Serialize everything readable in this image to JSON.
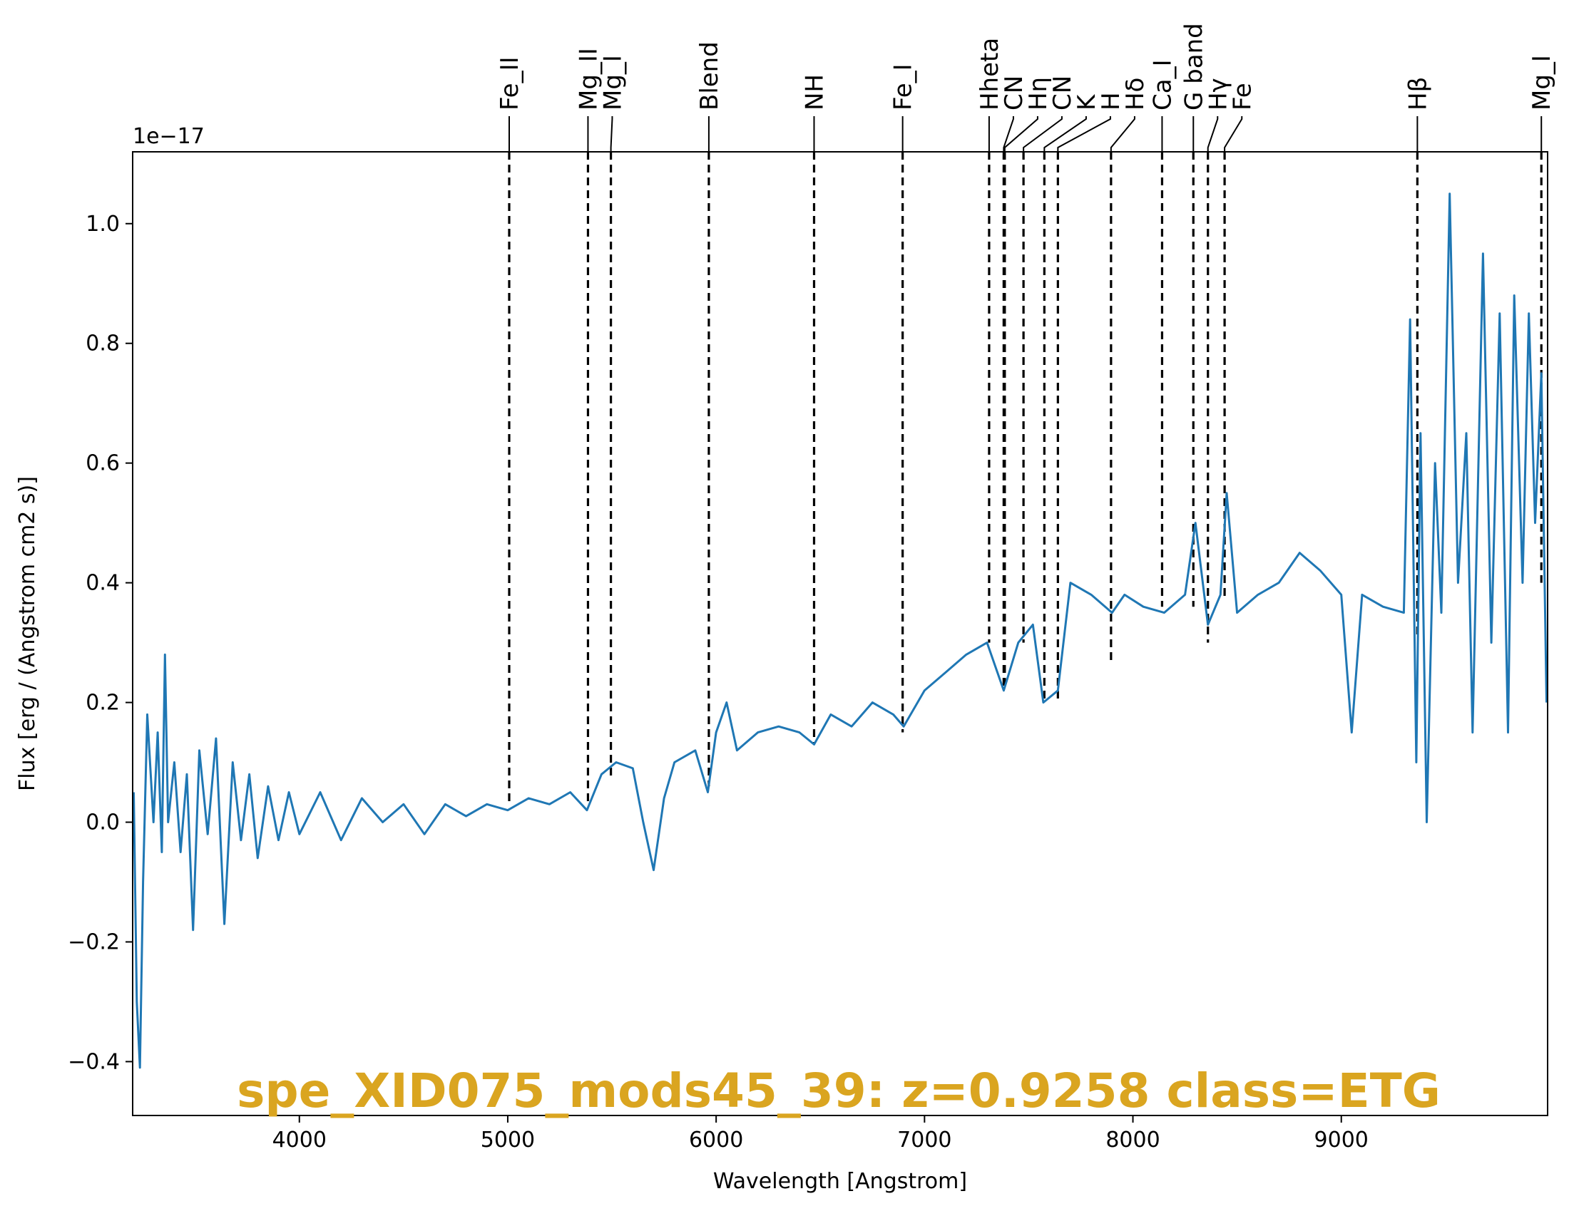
{
  "chart_data": {
    "type": "line",
    "title": "",
    "xlabel": "Wavelength [Angstrom]",
    "ylabel": "Flux [erg / (Angstrom cm2 s)]",
    "y_offset_text": "1e−17",
    "xlim": [
      3200,
      9990
    ],
    "ylim": [
      -0.49,
      1.12
    ],
    "x_ticks": [
      4000,
      5000,
      6000,
      7000,
      8000,
      9000
    ],
    "x_tick_labels": [
      "4000",
      "5000",
      "6000",
      "7000",
      "8000",
      "9000"
    ],
    "y_ticks": [
      -0.4,
      -0.2,
      0.0,
      0.2,
      0.4,
      0.6,
      0.8,
      1.0
    ],
    "y_tick_labels": [
      "−0.4",
      "−0.2",
      "0.0",
      "0.2",
      "0.4",
      "0.6",
      "0.8",
      "1.0"
    ],
    "grid": false,
    "annotation": {
      "text": "spe_XID075_mods45_39: z=0.9258 class=ETG",
      "color": "#DAA520"
    },
    "series": [
      {
        "color": "#1f77b4",
        "points": [
          [
            3205,
            0.05
          ],
          [
            3220,
            -0.3
          ],
          [
            3235,
            -0.41
          ],
          [
            3250,
            -0.1
          ],
          [
            3270,
            0.18
          ],
          [
            3300,
            0.0
          ],
          [
            3320,
            0.15
          ],
          [
            3340,
            -0.05
          ],
          [
            3355,
            0.28
          ],
          [
            3370,
            0.0
          ],
          [
            3400,
            0.1
          ],
          [
            3430,
            -0.05
          ],
          [
            3460,
            0.08
          ],
          [
            3490,
            -0.18
          ],
          [
            3520,
            0.12
          ],
          [
            3560,
            -0.02
          ],
          [
            3600,
            0.14
          ],
          [
            3640,
            -0.17
          ],
          [
            3680,
            0.1
          ],
          [
            3720,
            -0.03
          ],
          [
            3760,
            0.08
          ],
          [
            3800,
            -0.06
          ],
          [
            3850,
            0.06
          ],
          [
            3900,
            -0.03
          ],
          [
            3950,
            0.05
          ],
          [
            4000,
            -0.02
          ],
          [
            4100,
            0.05
          ],
          [
            4200,
            -0.03
          ],
          [
            4300,
            0.04
          ],
          [
            4400,
            0.0
          ],
          [
            4500,
            0.03
          ],
          [
            4600,
            -0.02
          ],
          [
            4700,
            0.03
          ],
          [
            4800,
            0.01
          ],
          [
            4900,
            0.03
          ],
          [
            5000,
            0.02
          ],
          [
            5100,
            0.04
          ],
          [
            5200,
            0.03
          ],
          [
            5300,
            0.05
          ],
          [
            5380,
            0.02
          ],
          [
            5450,
            0.08
          ],
          [
            5520,
            0.1
          ],
          [
            5600,
            0.09
          ],
          [
            5650,
            0.0
          ],
          [
            5700,
            -0.08
          ],
          [
            5750,
            0.04
          ],
          [
            5800,
            0.1
          ],
          [
            5900,
            0.12
          ],
          [
            5960,
            0.05
          ],
          [
            6000,
            0.15
          ],
          [
            6050,
            0.2
          ],
          [
            6100,
            0.12
          ],
          [
            6200,
            0.15
          ],
          [
            6300,
            0.16
          ],
          [
            6400,
            0.15
          ],
          [
            6470,
            0.13
          ],
          [
            6550,
            0.18
          ],
          [
            6650,
            0.16
          ],
          [
            6750,
            0.2
          ],
          [
            6850,
            0.18
          ],
          [
            6900,
            0.16
          ],
          [
            7000,
            0.22
          ],
          [
            7100,
            0.25
          ],
          [
            7200,
            0.28
          ],
          [
            7300,
            0.3
          ],
          [
            7380,
            0.22
          ],
          [
            7450,
            0.3
          ],
          [
            7520,
            0.33
          ],
          [
            7570,
            0.2
          ],
          [
            7640,
            0.22
          ],
          [
            7700,
            0.4
          ],
          [
            7800,
            0.38
          ],
          [
            7900,
            0.35
          ],
          [
            7960,
            0.38
          ],
          [
            8050,
            0.36
          ],
          [
            8150,
            0.35
          ],
          [
            8250,
            0.38
          ],
          [
            8300,
            0.5
          ],
          [
            8360,
            0.33
          ],
          [
            8420,
            0.38
          ],
          [
            8450,
            0.55
          ],
          [
            8500,
            0.35
          ],
          [
            8600,
            0.38
          ],
          [
            8700,
            0.4
          ],
          [
            8800,
            0.45
          ],
          [
            8900,
            0.42
          ],
          [
            9000,
            0.38
          ],
          [
            9050,
            0.15
          ],
          [
            9100,
            0.38
          ],
          [
            9200,
            0.36
          ],
          [
            9300,
            0.35
          ],
          [
            9330,
            0.84
          ],
          [
            9360,
            0.1
          ],
          [
            9380,
            0.65
          ],
          [
            9410,
            0.0
          ],
          [
            9450,
            0.6
          ],
          [
            9480,
            0.35
          ],
          [
            9520,
            1.05
          ],
          [
            9560,
            0.4
          ],
          [
            9600,
            0.65
          ],
          [
            9630,
            0.15
          ],
          [
            9680,
            0.95
          ],
          [
            9720,
            0.3
          ],
          [
            9760,
            0.85
          ],
          [
            9800,
            0.15
          ],
          [
            9830,
            0.88
          ],
          [
            9870,
            0.4
          ],
          [
            9900,
            0.85
          ],
          [
            9930,
            0.5
          ],
          [
            9960,
            0.75
          ],
          [
            9985,
            0.2
          ]
        ]
      }
    ],
    "reference_lines": [
      {
        "label": "Fe_II",
        "x": 5007,
        "y_bottom": 0.03
      },
      {
        "label": "Mg_II",
        "x": 5385,
        "y_bottom": 0.03
      },
      {
        "label": "Mg_I",
        "x": 5495,
        "y_bottom": 0.07
      },
      {
        "label": "Blend",
        "x": 5965,
        "y_bottom": 0.06
      },
      {
        "label": "NH",
        "x": 6470,
        "y_bottom": 0.13
      },
      {
        "label": "Fe_I",
        "x": 6895,
        "y_bottom": 0.15
      },
      {
        "label": "Hheta",
        "x": 7310,
        "y_bottom": 0.3
      },
      {
        "label": "CN",
        "x": 7380,
        "y_bottom": 0.22
      },
      {
        "label": "Hη",
        "x": 7385,
        "y_bottom": 0.22
      },
      {
        "label": "CN",
        "x": 7475,
        "y_bottom": 0.3
      },
      {
        "label": "K",
        "x": 7575,
        "y_bottom": 0.2
      },
      {
        "label": "H",
        "x": 7640,
        "y_bottom": 0.2
      },
      {
        "label": "Hδ",
        "x": 7895,
        "y_bottom": 0.27
      },
      {
        "label": "Ca_I",
        "x": 8140,
        "y_bottom": 0.36
      },
      {
        "label": "G band",
        "x": 8290,
        "y_bottom": 0.36
      },
      {
        "label": "Hγ",
        "x": 8360,
        "y_bottom": 0.3
      },
      {
        "label": "Fe",
        "x": 8440,
        "y_bottom": 0.37
      },
      {
        "label": "Hβ",
        "x": 9365,
        "y_bottom": 0.31
      },
      {
        "label": "Mg_I",
        "x": 9960,
        "y_bottom": 0.4
      }
    ]
  }
}
